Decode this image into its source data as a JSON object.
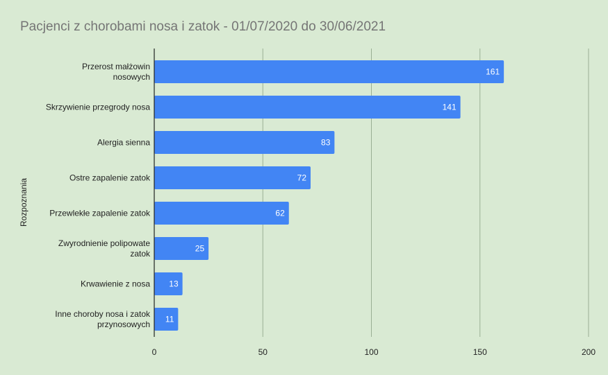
{
  "chart_data": {
    "type": "bar",
    "orientation": "horizontal",
    "title": "Pacjenci z chorobami nosa i zatok - 01/07/2020 do 30/06/2021",
    "ylabel": "Rozpoznania",
    "xlabel": "",
    "categories": [
      "Przerost małżowin nosowych",
      "Skrzywienie przegrody nosa",
      "Alergia sienna",
      "Ostre zapalenie zatok",
      "Przewlekłe zapalenie zatok",
      "Zwyrodnienie polipowate zatok",
      "Krwawienie z nosa",
      "Inne choroby nosa i zatok przynosowych"
    ],
    "category_lines": [
      [
        "Przerost małżowin",
        "nosowych"
      ],
      [
        "Skrzywienie przegrody nosa"
      ],
      [
        "Alergia sienna"
      ],
      [
        "Ostre zapalenie zatok"
      ],
      [
        "Przewlekłe zapalenie zatok"
      ],
      [
        "Zwyrodnienie polipowate",
        "zatok"
      ],
      [
        "Krwawienie z nosa"
      ],
      [
        "Inne choroby nosa i zatok",
        "przynosowych"
      ]
    ],
    "values": [
      161,
      141,
      83,
      72,
      62,
      25,
      13,
      11
    ],
    "data_labels": [
      "161",
      "141",
      "83",
      "72",
      "62",
      "25",
      "13",
      "11"
    ],
    "xlim": [
      0,
      200
    ],
    "xticks": [
      0,
      50,
      100,
      150,
      200
    ],
    "xtick_labels": [
      "0",
      "50",
      "100",
      "150",
      "200"
    ],
    "grid": "vertical",
    "legend": "none",
    "colors": {
      "bar": "#4285f4",
      "background": "#d9ead3",
      "grid": "#9aaf94",
      "axis": "#222222",
      "data_label": "#ffffff"
    }
  }
}
